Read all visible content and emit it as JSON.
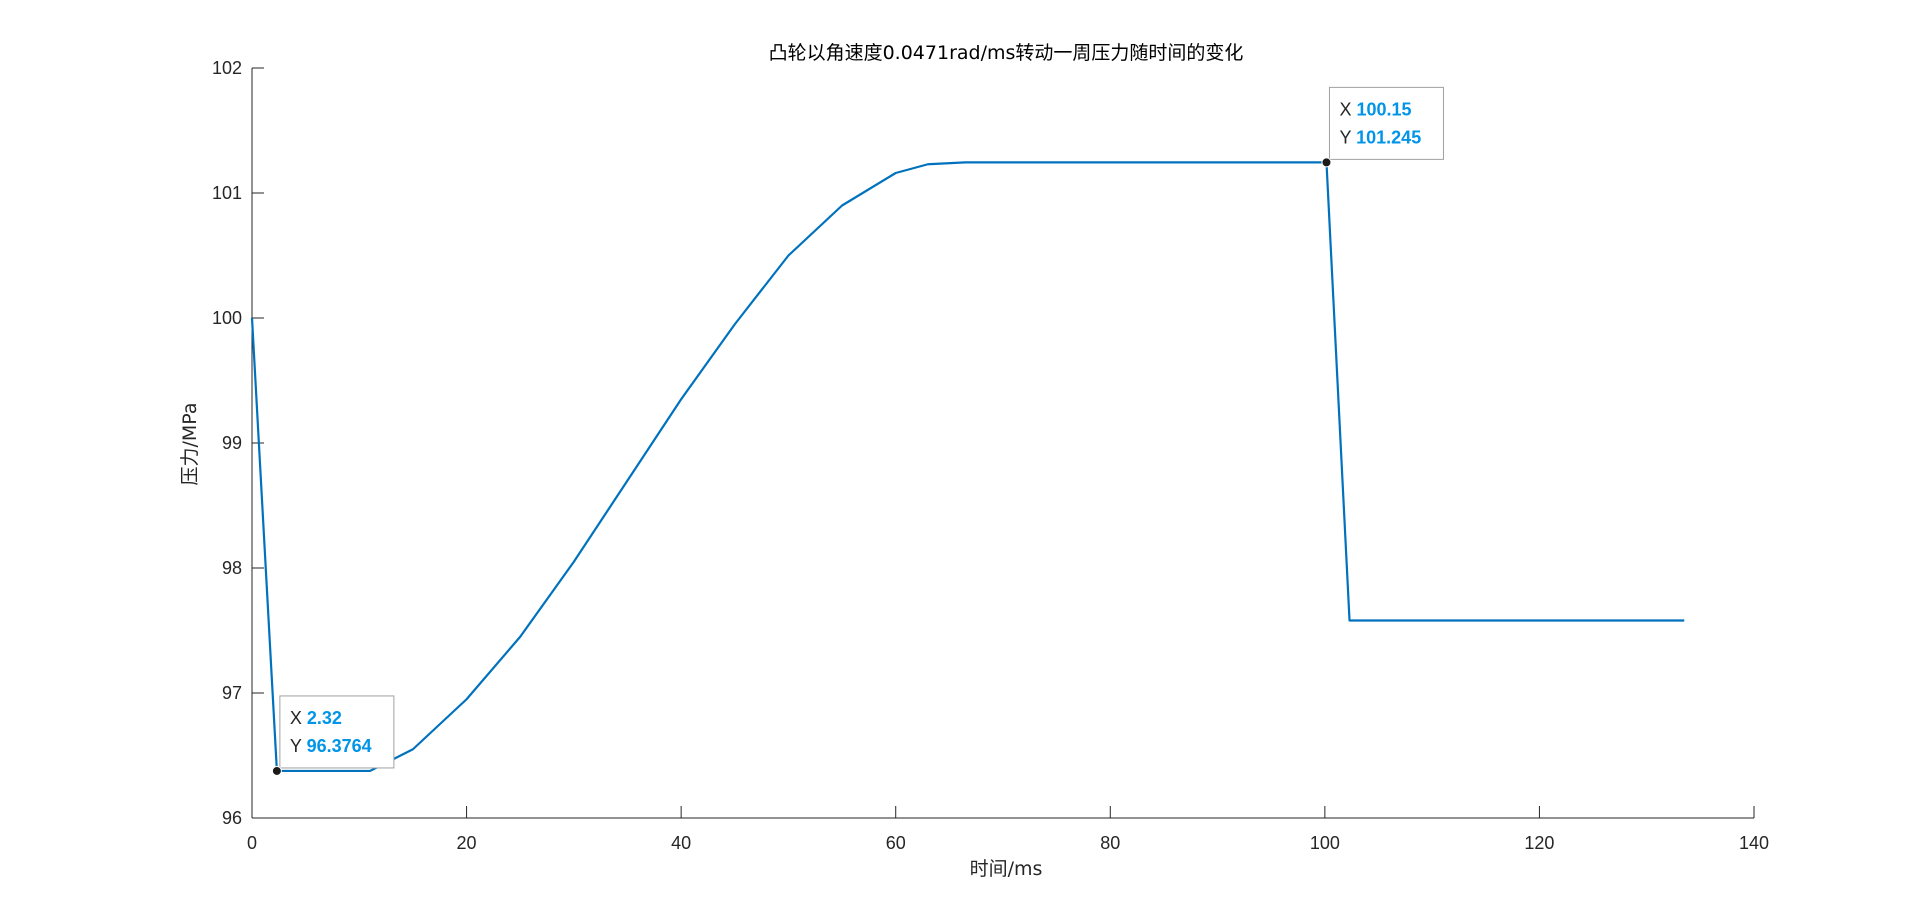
{
  "colors": {
    "series": "#0072BD",
    "axis": "#262626",
    "datatip_value": "#0095E8",
    "datatip_border": "#A0A0A0",
    "datatip_bg": "#FFFFFF",
    "marker": "#1A1A1A"
  },
  "chart_data": {
    "type": "line",
    "title": "凸轮以角速度0.0471rad/ms转动一周压力随时间的变化",
    "xlabel": "时间/ms",
    "ylabel": "压力/MPa",
    "xlim": [
      0,
      140
    ],
    "ylim": [
      96,
      102
    ],
    "xticks": [
      0,
      20,
      40,
      60,
      80,
      100,
      120,
      140
    ],
    "yticks": [
      96,
      97,
      98,
      99,
      100,
      101,
      102
    ],
    "xtick_labels": [
      "0",
      "20",
      "40",
      "60",
      "80",
      "100",
      "120",
      "140"
    ],
    "ytick_labels": [
      "96",
      "97",
      "98",
      "99",
      "100",
      "101",
      "102"
    ],
    "grid": false,
    "series": [
      {
        "color": "#0072BD",
        "x": [
          0,
          2.32,
          11.0,
          15,
          20,
          25,
          30,
          35,
          40,
          45,
          50,
          55,
          60,
          63,
          66.5,
          80,
          100.15,
          102.3,
          110,
          120,
          133.5
        ],
        "y": [
          100.0,
          96.3764,
          96.3764,
          96.55,
          96.95,
          97.45,
          98.05,
          98.7,
          99.35,
          99.95,
          100.5,
          100.9,
          101.16,
          101.23,
          101.245,
          101.245,
          101.245,
          97.58,
          97.58,
          97.58,
          97.58
        ]
      }
    ],
    "datatips": [
      {
        "x_key": "X",
        "x_value": "2.32",
        "y_key": "Y",
        "y_value": "96.3764",
        "x": 2.32,
        "y": 96.3764
      },
      {
        "x_key": "X",
        "x_value": "100.15",
        "y_key": "Y",
        "y_value": "101.245",
        "x": 100.15,
        "y": 101.245
      }
    ]
  }
}
